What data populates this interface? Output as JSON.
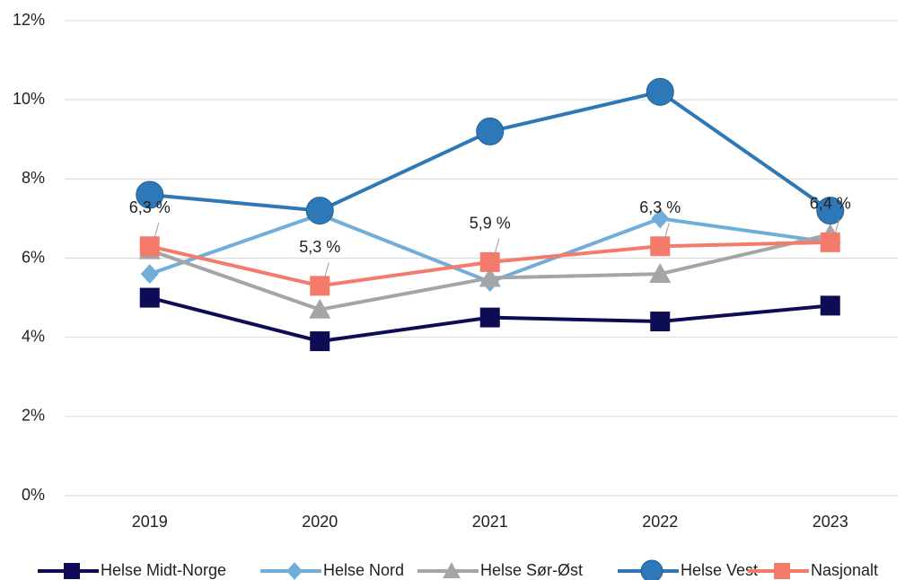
{
  "chart_data": {
    "type": "line",
    "categories": [
      "2019",
      "2020",
      "2021",
      "2022",
      "2023"
    ],
    "series": [
      {
        "name": "Helse Midt-Norge",
        "color": "#0e0c55",
        "marker": "square",
        "values": [
          5.0,
          3.9,
          4.5,
          4.4,
          4.8
        ]
      },
      {
        "name": "Helse Nord",
        "color": "#70aed9",
        "marker": "diamond",
        "values": [
          5.6,
          7.1,
          5.4,
          7.0,
          6.4
        ]
      },
      {
        "name": "Helse Sør-Øst",
        "color": "#a5a5a5",
        "marker": "triangle",
        "values": [
          6.2,
          4.7,
          5.5,
          5.6,
          6.6
        ]
      },
      {
        "name": "Helse Vest",
        "color": "#2e78b7",
        "marker": "circle",
        "values": [
          7.6,
          7.2,
          9.2,
          10.2,
          7.2
        ]
      },
      {
        "name": "Nasjonalt",
        "color": "#f47b6b",
        "marker": "square",
        "values": [
          6.3,
          5.3,
          5.9,
          6.3,
          6.4
        ],
        "value_labels": [
          "6,3 %",
          "5,3 %",
          "5,9 %",
          "6,3 %",
          "6,4 %"
        ]
      }
    ],
    "ylim": [
      0,
      12
    ],
    "yticks": [
      {
        "value": 0,
        "label": "0%"
      },
      {
        "value": 2,
        "label": "2%"
      },
      {
        "value": 4,
        "label": "4%"
      },
      {
        "value": 6,
        "label": "6%"
      },
      {
        "value": 8,
        "label": "8%"
      },
      {
        "value": 10,
        "label": "10%"
      },
      {
        "value": 12,
        "label": "12%"
      }
    ],
    "grid": true,
    "legend": "bottom"
  }
}
